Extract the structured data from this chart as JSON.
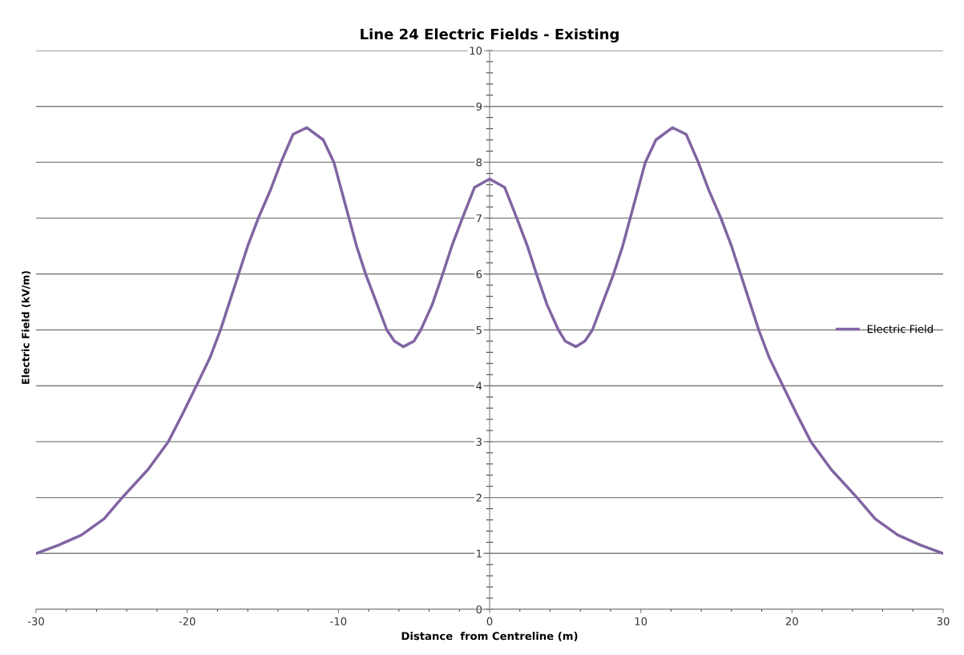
{
  "chart_data": {
    "type": "line",
    "title": "Line 24 Electric Fields - Existing",
    "xlabel": "Distance  from Centreline (m)",
    "ylabel": "Electric Field (kV/m)",
    "x": [
      -30,
      -28.5,
      -27,
      -25.5,
      -24.3,
      -22.6,
      -21.25,
      -20.3,
      -19.4,
      -18.5,
      -17.8,
      -17.2,
      -16.6,
      -16,
      -15.3,
      -14.5,
      -13.8,
      -13,
      -12.1,
      -11,
      -10.3,
      -9.8,
      -9.3,
      -8.8,
      -8.2,
      -7.5,
      -6.8,
      -6.3,
      -5.7,
      -5.0,
      -4.55,
      -3.8,
      -3.1,
      -2.5,
      -1.8,
      -1,
      0,
      1,
      1.8,
      2.5,
      3.1,
      3.8,
      4.55,
      5.0,
      5.7,
      6.3,
      6.8,
      7.5,
      8.2,
      8.8,
      9.3,
      9.8,
      10.3,
      11,
      12.1,
      13,
      13.8,
      14.5,
      15.3,
      16,
      16.6,
      17.2,
      17.8,
      18.5,
      19.4,
      20.3,
      21.25,
      22.6,
      24.3,
      25.5,
      27,
      28.5,
      30
    ],
    "series": [
      {
        "name": "Electric Field",
        "color": "#8064a2",
        "values": [
          1.0,
          1.15,
          1.33,
          1.62,
          2.0,
          2.5,
          3.0,
          3.5,
          4.0,
          4.5,
          5.0,
          5.5,
          6.0,
          6.5,
          7.0,
          7.5,
          8.0,
          8.5,
          8.62,
          8.4,
          8.0,
          7.5,
          7.0,
          6.5,
          6.0,
          5.5,
          5.0,
          4.8,
          4.7,
          4.8,
          5.0,
          5.45,
          6.0,
          6.5,
          7.0,
          7.55,
          7.7,
          7.55,
          7.0,
          6.5,
          6.0,
          5.45,
          5.0,
          4.8,
          4.7,
          4.8,
          5.0,
          5.5,
          6.0,
          6.5,
          7.0,
          7.5,
          8.0,
          8.4,
          8.62,
          8.5,
          8.0,
          7.5,
          7.0,
          6.5,
          6.0,
          5.5,
          5.0,
          4.5,
          4.0,
          3.5,
          3.0,
          2.5,
          2.0,
          1.62,
          1.33,
          1.15,
          1.0
        ]
      }
    ],
    "xlim": [
      -30,
      30
    ],
    "xticks": [
      -30,
      -20,
      -10,
      0,
      10,
      20,
      30
    ],
    "ylim": [
      0,
      10
    ],
    "yticks": [
      0,
      1,
      2,
      3,
      4,
      5,
      6,
      7,
      8,
      9,
      10
    ],
    "grid": "y",
    "legend": "right",
    "marker": "none",
    "line_style": "solid"
  }
}
